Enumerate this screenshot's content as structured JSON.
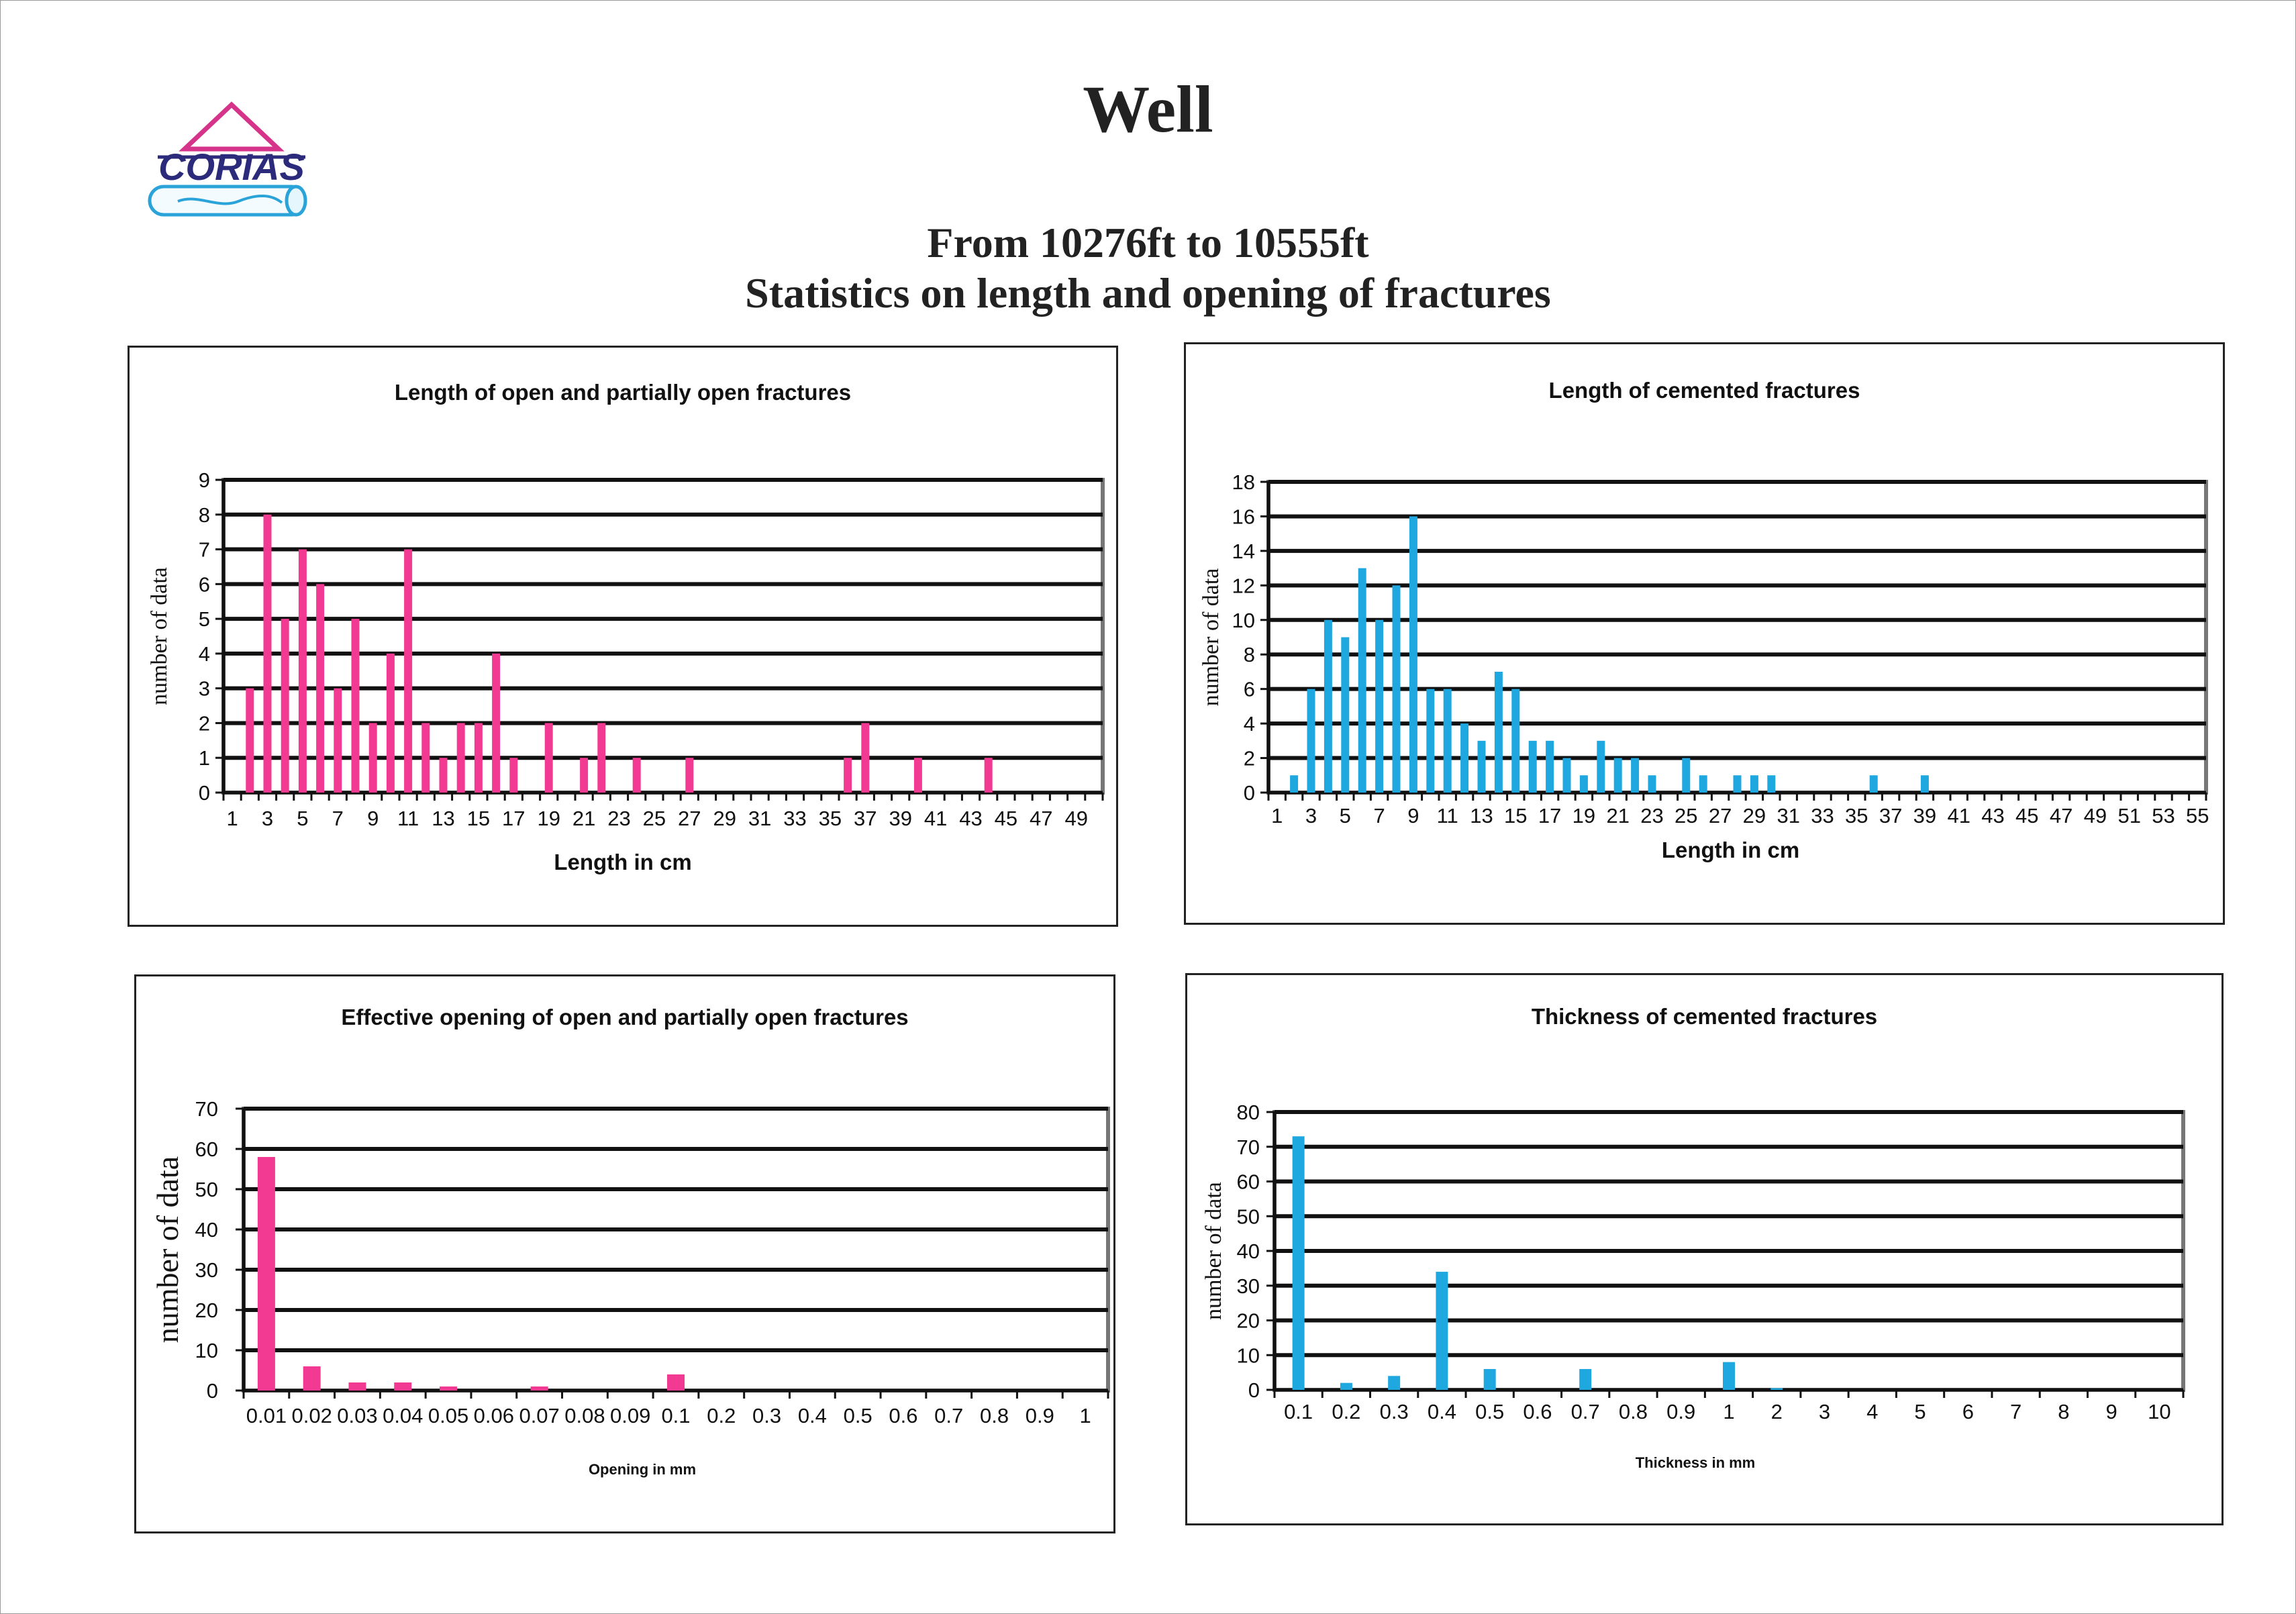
{
  "page": {
    "title": "Well",
    "subtitle_line1": "From 10276ft to 10555ft",
    "subtitle_line2": "Statistics on length and opening of fractures",
    "logo_text": "CORIAS"
  },
  "colors": {
    "pink": "#f23a93",
    "blue": "#1fa7e0",
    "axis": "#111111",
    "frame": "#777777"
  },
  "chart_data": [
    {
      "type": "bar",
      "title": "Length of open and partially open fractures",
      "xlabel": "Length in cm",
      "ylabel": "number of data",
      "ylim": [
        0,
        9
      ],
      "yticks": [
        "0",
        "1",
        "2",
        "3",
        "4",
        "5",
        "6",
        "7",
        "8",
        "9"
      ],
      "tick_labels": [
        "1",
        "3",
        "5",
        "7",
        "9",
        "11",
        "13",
        "15",
        "17",
        "19",
        "21",
        "23",
        "25",
        "27",
        "29",
        "31",
        "33",
        "35",
        "37",
        "39",
        "41",
        "43",
        "45",
        "47",
        "49"
      ],
      "categories": [
        1,
        2,
        3,
        4,
        5,
        6,
        7,
        8,
        9,
        10,
        11,
        12,
        13,
        14,
        15,
        16,
        17,
        18,
        19,
        20,
        21,
        22,
        23,
        24,
        25,
        26,
        27,
        28,
        29,
        30,
        31,
        32,
        33,
        34,
        35,
        36,
        37,
        38,
        39,
        40,
        41,
        42,
        43,
        44,
        45,
        46,
        47,
        48,
        49,
        50
      ],
      "values": [
        0,
        3,
        8,
        5,
        7,
        6,
        3,
        5,
        2,
        4,
        7,
        2,
        1,
        2,
        2,
        4,
        1,
        0,
        2,
        0,
        1,
        2,
        0,
        1,
        0,
        0,
        1,
        0,
        0,
        0,
        0,
        0,
        0,
        0,
        0,
        1,
        2,
        0,
        0,
        1,
        0,
        0,
        0,
        1,
        0,
        0,
        0,
        0,
        0,
        0
      ],
      "color": "#f23a93",
      "grid": true
    },
    {
      "type": "bar",
      "title": "Length of cemented fractures",
      "xlabel": "Length in cm",
      "ylabel": "number of data",
      "ylim": [
        0,
        18
      ],
      "yticks": [
        "0",
        "2",
        "4",
        "6",
        "8",
        "10",
        "12",
        "14",
        "16",
        "18"
      ],
      "tick_labels": [
        "1",
        "3",
        "5",
        "7",
        "9",
        "11",
        "13",
        "15",
        "17",
        "19",
        "21",
        "23",
        "25",
        "27",
        "29",
        "31",
        "33",
        "35",
        "37",
        "39",
        "41",
        "43",
        "45",
        "47",
        "49",
        "51",
        "53",
        "55"
      ],
      "categories": [
        1,
        2,
        3,
        4,
        5,
        6,
        7,
        8,
        9,
        10,
        11,
        12,
        13,
        14,
        15,
        16,
        17,
        18,
        19,
        20,
        21,
        22,
        23,
        24,
        25,
        26,
        27,
        28,
        29,
        30,
        31,
        32,
        33,
        34,
        35,
        36,
        37,
        38,
        39,
        40,
        41,
        42,
        43,
        44,
        45,
        46,
        47,
        48,
        49,
        50,
        51,
        52,
        53,
        54,
        55
      ],
      "values": [
        0,
        1,
        6,
        10,
        9,
        13,
        10,
        12,
        16,
        6,
        6,
        4,
        3,
        7,
        6,
        3,
        3,
        2,
        1,
        3,
        2,
        2,
        1,
        0,
        2,
        1,
        0,
        1,
        1,
        1,
        0,
        0,
        0,
        0,
        0,
        1,
        0,
        0,
        1,
        0,
        0,
        0,
        0,
        0,
        0,
        0,
        0,
        0,
        0,
        0,
        0,
        0,
        0,
        0,
        0
      ],
      "color": "#1fa7e0",
      "grid": true
    },
    {
      "type": "bar",
      "title": "Effective opening of open and partially open fractures",
      "xlabel": "Opening in mm",
      "ylabel": "number of data",
      "ylim": [
        0,
        70
      ],
      "yticks": [
        "0",
        "10",
        "20",
        "30",
        "40",
        "50",
        "60",
        "70"
      ],
      "categories": [
        "0.01",
        "0.02",
        "0.03",
        "0.04",
        "0.05",
        "0.06",
        "0.07",
        "0.08",
        "0.09",
        "0.1",
        "0.2",
        "0.3",
        "0.4",
        "0.5",
        "0.6",
        "0.7",
        "0.8",
        "0.9",
        "1"
      ],
      "values": [
        58,
        6,
        2,
        2,
        1,
        0,
        1,
        0,
        0,
        4,
        0,
        0,
        0,
        0,
        0,
        0,
        0,
        0,
        0
      ],
      "color": "#f23a93",
      "grid": true
    },
    {
      "type": "bar",
      "title": "Thickness of cemented fractures",
      "xlabel": "Thickness in mm",
      "ylabel": "number of data",
      "ylim": [
        0,
        80
      ],
      "yticks": [
        "0",
        "10",
        "20",
        "30",
        "40",
        "50",
        "60",
        "70",
        "80"
      ],
      "categories": [
        "0.1",
        "0.2",
        "0.3",
        "0.4",
        "0.5",
        "0.6",
        "0.7",
        "0.8",
        "0.9",
        "1",
        "2",
        "3",
        "4",
        "5",
        "6",
        "7",
        "8",
        "9",
        "10"
      ],
      "values": [
        73,
        2,
        4,
        34,
        6,
        0,
        6,
        0,
        0,
        8,
        0.5,
        0,
        0,
        0,
        0,
        0,
        0,
        0,
        0
      ],
      "color": "#1fa7e0",
      "grid": true
    }
  ]
}
